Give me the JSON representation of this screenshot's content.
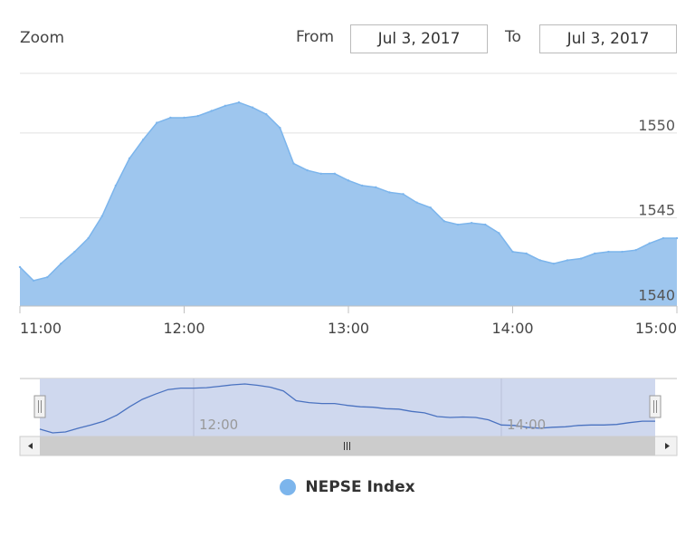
{
  "range_selector": {
    "zoom_label": "Zoom",
    "from_label": "From",
    "from_value": "Jul 3, 2017",
    "to_label": "To",
    "to_value": "Jul 3, 2017"
  },
  "navigator": {
    "tick_labels": [
      "12:00",
      "14:00"
    ]
  },
  "colors": {
    "series": "#7cb5ec",
    "area_fill": "#9ec6ee",
    "navigator_mask": "#cfd8ee",
    "navigator_line": "#4a72c0",
    "grid": "#e0e0e0",
    "axis": "#c0c0c0"
  },
  "chart_data": {
    "type": "area",
    "title": "",
    "xlabel": "",
    "ylabel": "",
    "ylim": [
      1539.8,
      1552.5
    ],
    "xlim": [
      "11:00",
      "15:00"
    ],
    "x_ticks": [
      "11:00",
      "12:00",
      "13:00",
      "14:00",
      "15:00"
    ],
    "y_ticks": [
      1540,
      1545,
      1550
    ],
    "grid": true,
    "legend": "bottom-center",
    "series": [
      {
        "name": "NEPSE Index",
        "x": [
          "11:00",
          "11:05",
          "11:10",
          "11:15",
          "11:20",
          "11:25",
          "11:30",
          "11:35",
          "11:40",
          "11:45",
          "11:50",
          "11:55",
          "12:00",
          "12:05",
          "12:10",
          "12:15",
          "12:20",
          "12:25",
          "12:30",
          "12:35",
          "12:40",
          "12:45",
          "12:50",
          "12:55",
          "13:00",
          "13:05",
          "13:10",
          "13:15",
          "13:20",
          "13:25",
          "13:30",
          "13:35",
          "13:40",
          "13:45",
          "13:50",
          "13:55",
          "14:00",
          "14:05",
          "14:10",
          "14:15",
          "14:20",
          "14:25",
          "14:30",
          "14:35",
          "14:40",
          "14:45",
          "14:50",
          "14:55",
          "15:00"
        ],
        "values": [
          1542.1,
          1541.3,
          1541.5,
          1542.3,
          1543.0,
          1543.8,
          1545.1,
          1546.9,
          1548.5,
          1549.6,
          1550.6,
          1550.9,
          1550.9,
          1551.0,
          1551.3,
          1551.6,
          1551.8,
          1551.5,
          1551.1,
          1550.3,
          1548.2,
          1547.8,
          1547.6,
          1547.6,
          1547.2,
          1546.9,
          1546.8,
          1546.5,
          1546.4,
          1545.9,
          1545.6,
          1544.8,
          1544.6,
          1544.7,
          1544.6,
          1544.1,
          1543.0,
          1542.9,
          1542.5,
          1542.3,
          1542.5,
          1542.6,
          1542.9,
          1543.0,
          1543.0,
          1543.1,
          1543.5,
          1543.8,
          1543.8
        ]
      }
    ]
  }
}
